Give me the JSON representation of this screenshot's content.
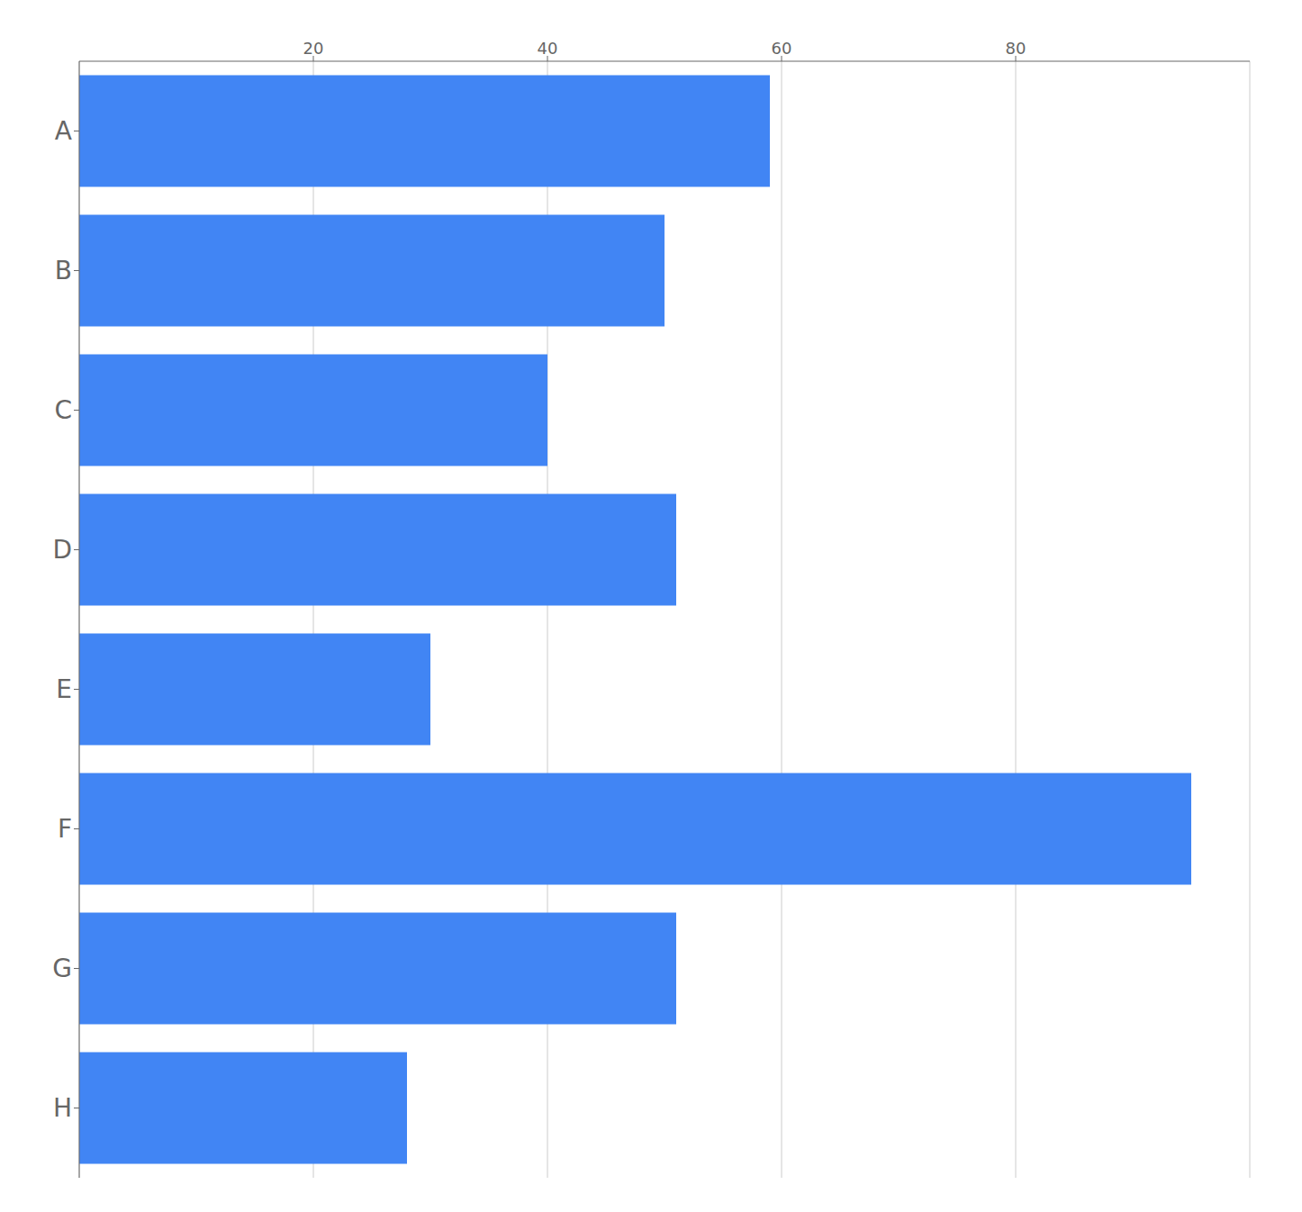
{
  "chart_data": {
    "type": "bar",
    "orientation": "horizontal",
    "categories": [
      "A",
      "B",
      "C",
      "D",
      "E",
      "F",
      "G",
      "H"
    ],
    "values": [
      59,
      50,
      40,
      51,
      30,
      95,
      51,
      28
    ],
    "color": "#4185f4",
    "xlim": [
      0,
      100
    ],
    "xticks": [
      20,
      40,
      60,
      80
    ],
    "grid": true
  }
}
